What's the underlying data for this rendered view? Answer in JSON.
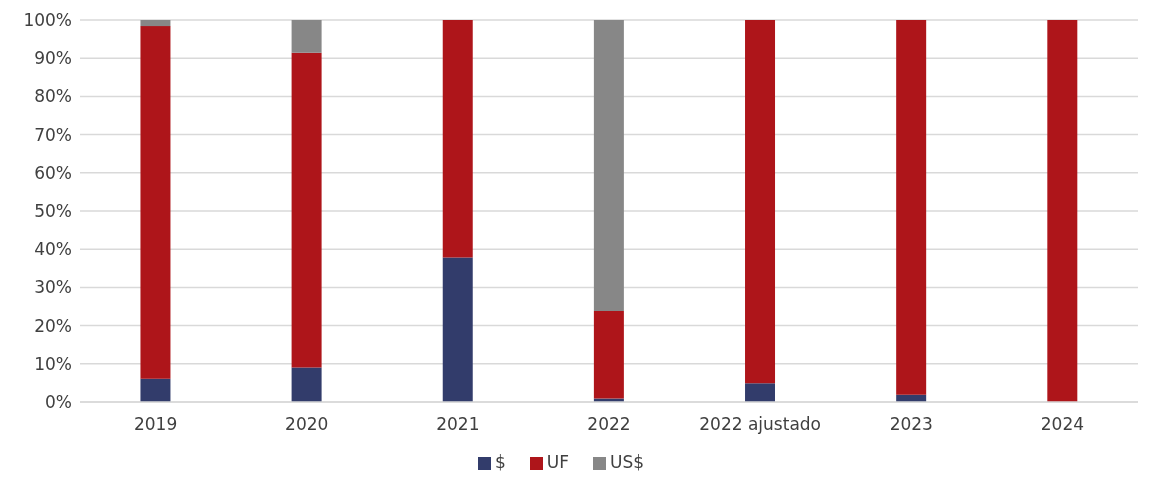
{
  "chart_data": {
    "type": "bar",
    "stacked": true,
    "categories": [
      "2019",
      "2020",
      "2021",
      "2022",
      "2022 ajustado",
      "2023",
      "2024"
    ],
    "series": [
      {
        "name": "$",
        "color": "#323c6b",
        "values": [
          6.1,
          9.0,
          37.8,
          0.9,
          4.9,
          1.9,
          0
        ]
      },
      {
        "name": "UF",
        "color": "#ae151a",
        "values": [
          92.3,
          82.4,
          62.2,
          22.9,
          95.1,
          98.1,
          100
        ]
      },
      {
        "name": "US$",
        "color": "#878787",
        "values": [
          1.6,
          8.6,
          0,
          76.2,
          0,
          0,
          0
        ]
      }
    ],
    "ylim": [
      0,
      100
    ],
    "yticks": [
      {
        "value": 0,
        "label": "0%"
      },
      {
        "value": 10,
        "label": "10%"
      },
      {
        "value": 20,
        "label": "20%"
      },
      {
        "value": 30,
        "label": "30%"
      },
      {
        "value": 40,
        "label": "40%"
      },
      {
        "value": 50,
        "label": "50%"
      },
      {
        "value": 60,
        "label": "60%"
      },
      {
        "value": 70,
        "label": "70%"
      },
      {
        "value": 80,
        "label": "80%"
      },
      {
        "value": 90,
        "label": "90%"
      },
      {
        "value": 100,
        "label": "100%"
      }
    ],
    "grid": "y",
    "legend": "bottom"
  }
}
